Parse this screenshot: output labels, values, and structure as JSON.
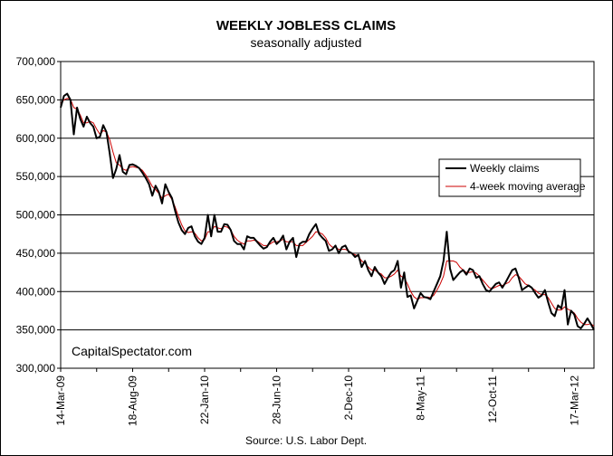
{
  "chart_data": {
    "type": "line",
    "title": "WEEKLY JOBLESS CLAIMS",
    "subtitle": "seasonally adjusted",
    "ylim": [
      300000,
      700000
    ],
    "yticks": [
      "700,000",
      "650,000",
      "600,000",
      "550,000",
      "500,000",
      "450,000",
      "400,000",
      "350,000",
      "300,000"
    ],
    "ytick_values": [
      700000,
      650000,
      600000,
      550000,
      500000,
      450000,
      400000,
      350000,
      300000
    ],
    "x_tick_labels": [
      "14-Mar-09",
      "18-Aug-09",
      "22-Jan-10",
      "28-Jun-10",
      "2-Dec-10",
      "8-May-11",
      "12-Oct-11",
      "17-Mar-12"
    ],
    "x_tick_weeks": [
      0,
      22,
      44,
      66,
      88,
      110,
      132,
      157
    ],
    "grid": true,
    "legend_position": "right",
    "annotation": "CapitalSpectator.com",
    "source": "Source: U.S. Labor Dept.",
    "series": [
      {
        "name": "Weekly claims",
        "color": "#000000",
        "values": [
          640000,
          655000,
          658000,
          650000,
          605000,
          640000,
          625000,
          615000,
          628000,
          620000,
          615000,
          600000,
          602000,
          617000,
          608000,
          580000,
          548000,
          560000,
          578000,
          556000,
          553000,
          565000,
          566000,
          564000,
          561000,
          555000,
          548000,
          540000,
          525000,
          538000,
          530000,
          515000,
          540000,
          530000,
          522000,
          505000,
          490000,
          480000,
          475000,
          483000,
          485000,
          472000,
          465000,
          462000,
          470000,
          500000,
          472000,
          500000,
          478000,
          478000,
          488000,
          487000,
          480000,
          466000,
          462000,
          462000,
          455000,
          472000,
          470000,
          470000,
          465000,
          460000,
          456000,
          458000,
          465000,
          470000,
          462000,
          466000,
          473000,
          455000,
          465000,
          470000,
          445000,
          462000,
          465000,
          465000,
          475000,
          482000,
          488000,
          475000,
          470000,
          466000,
          453000,
          455000,
          460000,
          450000,
          458000,
          460000,
          452000,
          450000,
          445000,
          448000,
          432000,
          440000,
          428000,
          420000,
          432000,
          425000,
          420000,
          410000,
          418000,
          425000,
          428000,
          440000,
          405000,
          425000,
          393000,
          395000,
          378000,
          388000,
          398000,
          393000,
          392000,
          390000,
          400000,
          410000,
          420000,
          440000,
          478000,
          430000,
          415000,
          420000,
          425000,
          428000,
          422000,
          430000,
          428000,
          418000,
          420000,
          410000,
          402000,
          400000,
          405000,
          410000,
          412000,
          405000,
          412000,
          420000,
          428000,
          430000,
          418000,
          402000,
          405000,
          408000,
          405000,
          398000,
          392000,
          395000,
          402000,
          386000,
          372000,
          368000,
          382000,
          378000,
          402000,
          357000,
          375000,
          370000,
          355000,
          352000,
          358000,
          365000,
          358000,
          350000
        ],
        "note": "weekly observations estimated from the plot; x index = weeks since 14-Mar-09"
      },
      {
        "name": "4-week moving average",
        "color": "#cc0000",
        "values": [
          645000,
          650000,
          652000,
          651000,
          640000,
          638000,
          630000,
          620000,
          620000,
          622000,
          620000,
          612000,
          605000,
          610000,
          608000,
          598000,
          582000,
          568000,
          565000,
          560000,
          558000,
          562000,
          563000,
          562000,
          561000,
          558000,
          552000,
          545000,
          537000,
          533000,
          528000,
          522000,
          525000,
          527000,
          520000,
          510000,
          498000,
          487000,
          479000,
          477000,
          478000,
          476000,
          470000,
          466000,
          468000,
          478000,
          478000,
          485000,
          483000,
          482000,
          485000,
          484000,
          480000,
          472000,
          467000,
          464000,
          462000,
          466000,
          466000,
          467000,
          466000,
          463000,
          460000,
          460000,
          462000,
          465000,
          465000,
          466000,
          468000,
          465000,
          465000,
          465000,
          460000,
          460000,
          460000,
          464000,
          468000,
          472000,
          478000,
          477000,
          475000,
          470000,
          462000,
          458000,
          458000,
          455000,
          455000,
          455000,
          453000,
          450000,
          448000,
          446000,
          440000,
          437000,
          432000,
          428000,
          428000,
          425000,
          423000,
          418000,
          418000,
          420000,
          423000,
          428000,
          420000,
          418000,
          410000,
          400000,
          393000,
          390000,
          392000,
          392000,
          393000,
          392000,
          395000,
          402000,
          410000,
          420000,
          440000,
          440000,
          440000,
          438000,
          432000,
          428000,
          425000,
          425000,
          426000,
          424000,
          420000,
          415000,
          410000,
          405000,
          404000,
          406000,
          408000,
          408000,
          410000,
          412000,
          418000,
          422000,
          420000,
          415000,
          410000,
          408000,
          405000,
          402000,
          398000,
          396000,
          396000,
          392000,
          385000,
          378000,
          376000,
          376000,
          380000,
          377000,
          375000,
          372000,
          365000,
          360000,
          357000,
          357000,
          358000,
          355000
        ]
      }
    ]
  }
}
